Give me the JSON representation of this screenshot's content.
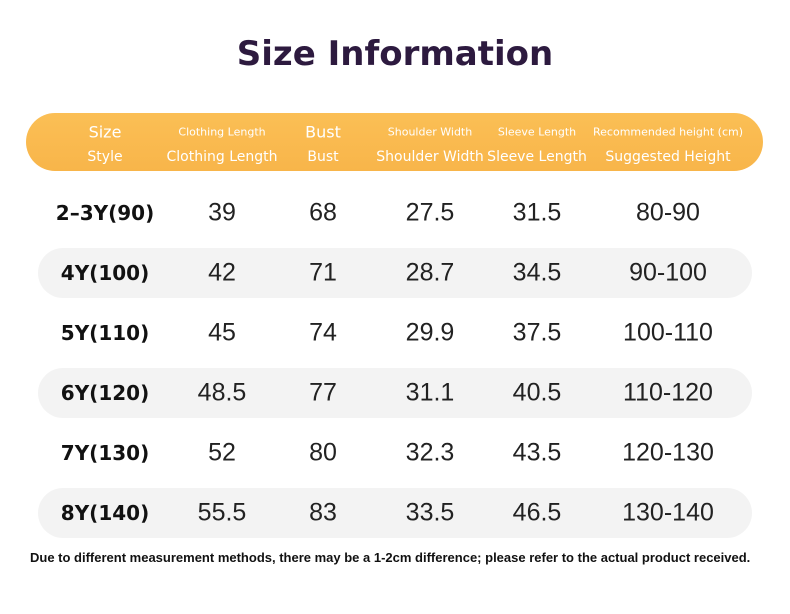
{
  "header": {
    "title": "Size Information"
  },
  "table": {
    "header_top": [
      "Size",
      "Clothing Length",
      "Bust",
      "Shoulder Width",
      "Sleeve Length",
      "Recommended height (cm)"
    ],
    "header_bottom": [
      "Style",
      "Clothing Length",
      "Bust",
      "Shoulder Width",
      "Sleeve Length",
      "Suggested Height"
    ],
    "rows": [
      [
        "2–3Y(90)",
        "39",
        "68",
        "27.5",
        "31.5",
        "80-90"
      ],
      [
        "4Y(100)",
        "42",
        "71",
        "28.7",
        "34.5",
        "90-100"
      ],
      [
        "5Y(110)",
        "45",
        "74",
        "29.9",
        "37.5",
        "100-110"
      ],
      [
        "6Y(120)",
        "48.5",
        "77",
        "31.1",
        "40.5",
        "110-120"
      ],
      [
        "7Y(130)",
        "52",
        "80",
        "32.3",
        "43.5",
        "120-130"
      ],
      [
        "8Y(140)",
        "55.5",
        "83",
        "33.5",
        "46.5",
        "130-140"
      ]
    ]
  },
  "note": "Due to different measurement methods, there may be a 1-2cm difference; please refer to the actual product received."
}
